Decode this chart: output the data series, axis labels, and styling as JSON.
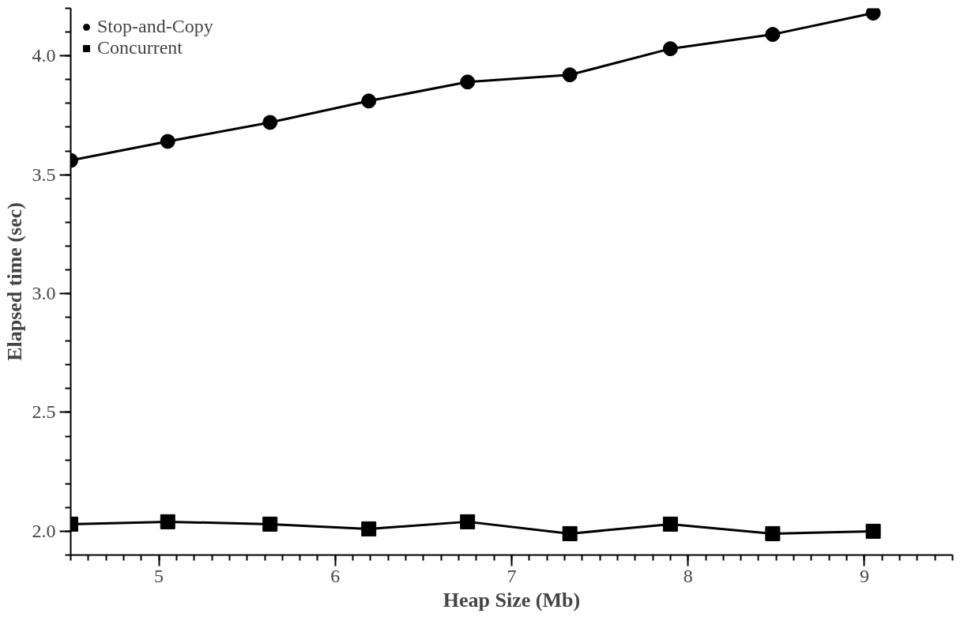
{
  "chart_data": {
    "type": "line",
    "xlabel": "Heap Size (Mb)",
    "ylabel": "Elapsed time (sec)",
    "x": [
      4.5,
      5.05,
      5.63,
      6.19,
      6.75,
      7.33,
      7.9,
      8.48,
      9.05
    ],
    "series": [
      {
        "name": "Stop-and-Copy",
        "color": "#000000",
        "marker": "circle",
        "values": [
          3.56,
          3.64,
          3.72,
          3.81,
          3.89,
          3.92,
          4.03,
          4.09,
          4.18
        ]
      },
      {
        "name": "Concurrent",
        "color": "#000000",
        "marker": "square",
        "values": [
          2.03,
          2.04,
          2.03,
          2.01,
          2.04,
          1.99,
          2.03,
          1.99,
          2.0
        ]
      }
    ],
    "xlim": [
      4.5,
      9.5
    ],
    "ylim": [
      1.9,
      4.2
    ],
    "xticks": [
      5,
      6,
      7,
      8,
      9
    ],
    "yticks": [
      {
        "value": 2.0,
        "label": "2.0"
      },
      {
        "value": 2.5,
        "label": "2.5"
      },
      {
        "value": 3.0,
        "label": "3.0"
      },
      {
        "value": 3.5,
        "label": "3.5"
      },
      {
        "value": 4.0,
        "label": "4.0"
      }
    ],
    "grid": false,
    "legend": "top left",
    "line_style": "solid"
  }
}
